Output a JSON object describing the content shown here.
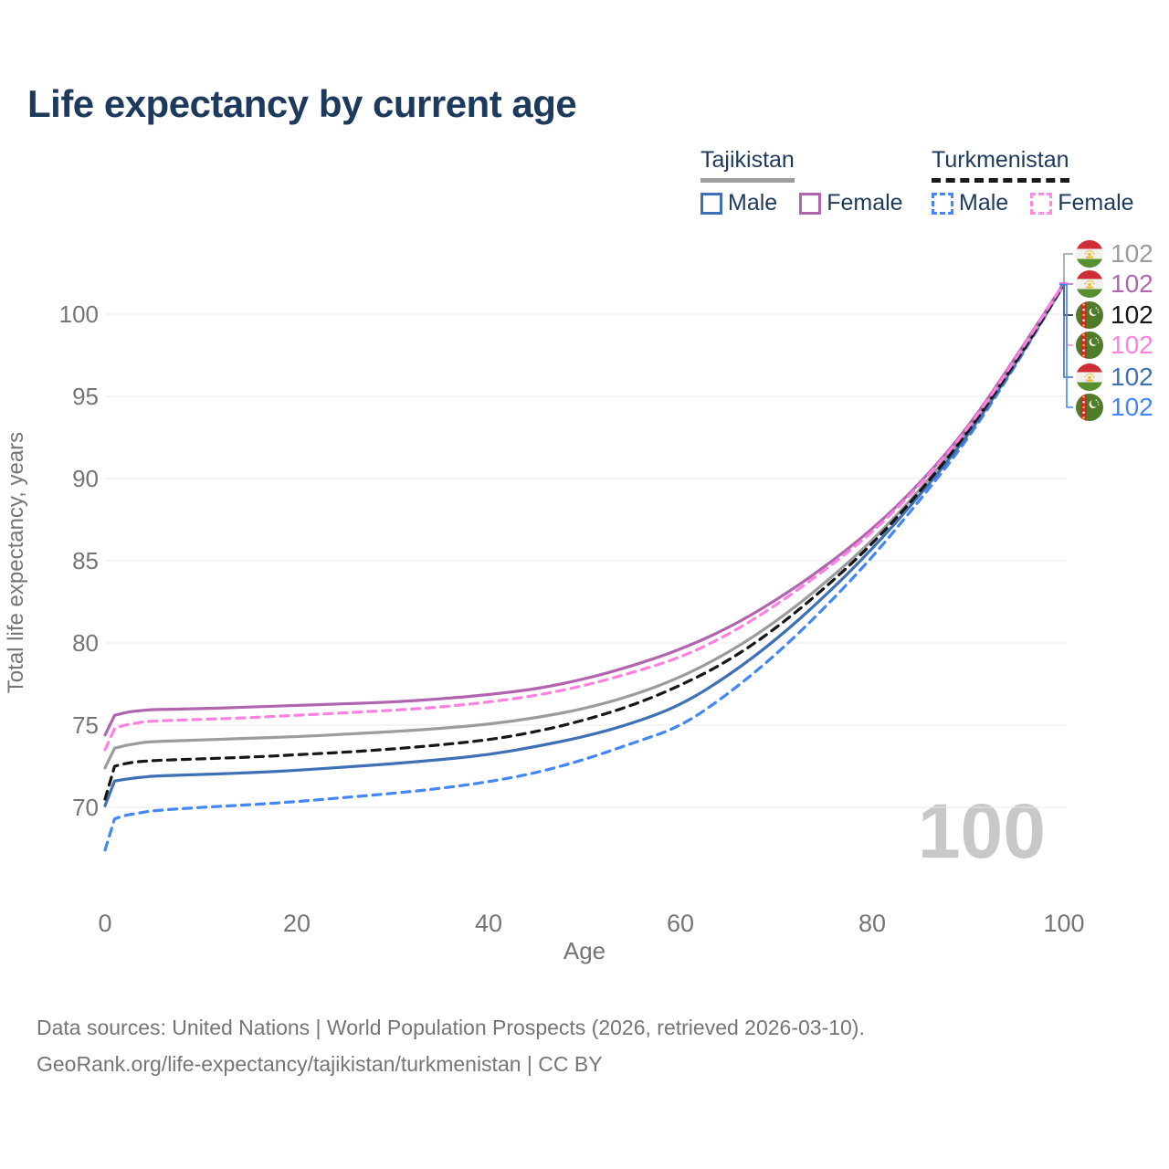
{
  "page": {
    "title": "Life expectancy by current age"
  },
  "legend": {
    "groups": [
      {
        "label": "Tajikistan",
        "underline_color": "#9e9e9e",
        "underline_style": "solid",
        "items": [
          {
            "label": "Male",
            "color": "#3e70b6",
            "style": "solid"
          },
          {
            "label": "Female",
            "color": "#b265af",
            "style": "solid"
          }
        ]
      },
      {
        "label": "Turkmenistan",
        "underline_color": "#1a1a1a",
        "underline_style": "dashed",
        "items": [
          {
            "label": "Male",
            "color": "#4287f5",
            "style": "dashed"
          },
          {
            "label": "Female",
            "color": "#ff8ce4",
            "style": "dashed"
          }
        ]
      }
    ]
  },
  "chart_data": {
    "type": "line",
    "title": "Life expectancy by current age",
    "xlabel": "Age",
    "ylabel": "Total life expectancy, years",
    "xlim": [
      0,
      100
    ],
    "ylim": [
      67,
      102
    ],
    "xticks": [
      0,
      20,
      40,
      60,
      80,
      100
    ],
    "yticks": [
      70,
      75,
      80,
      85,
      90,
      95,
      100
    ],
    "grid": "horizontal-only",
    "grid_color": "#e8e8e8",
    "tick_color": "#757575",
    "age_counter": "100",
    "x": [
      0,
      1,
      2,
      3,
      4,
      5,
      10,
      15,
      20,
      25,
      30,
      35,
      40,
      45,
      50,
      55,
      60,
      65,
      70,
      75,
      80,
      85,
      90,
      95,
      100
    ],
    "series": [
      {
        "name": "Tajikistan",
        "sex": "both",
        "style": "solid",
        "color": "#9c9c9c",
        "flag": "tajikistan",
        "end_label": "102",
        "label_slot": 0,
        "values": [
          72.4,
          73.6,
          73.75,
          73.85,
          73.95,
          74.0,
          74.1,
          74.2,
          74.3,
          74.45,
          74.6,
          74.8,
          75.05,
          75.45,
          76.0,
          76.8,
          77.9,
          79.4,
          81.3,
          83.6,
          86.2,
          89.3,
          92.9,
          97.2,
          101.8
        ]
      },
      {
        "name": "Tajikistan",
        "sex": "female",
        "style": "solid",
        "color": "#b265af",
        "flag": "tajikistan",
        "end_label": "102",
        "label_slot": 1,
        "values": [
          74.4,
          75.6,
          75.75,
          75.85,
          75.9,
          75.95,
          76.0,
          76.1,
          76.2,
          76.3,
          76.4,
          76.6,
          76.85,
          77.2,
          77.8,
          78.6,
          79.6,
          80.9,
          82.6,
          84.6,
          86.9,
          89.7,
          93.1,
          97.4,
          101.9
        ]
      },
      {
        "name": "Turkmenistan",
        "sex": "both",
        "style": "dashed",
        "color": "#161616",
        "flag": "turkmenistan",
        "end_label": "102",
        "label_slot": 2,
        "values": [
          70.5,
          72.5,
          72.65,
          72.75,
          72.8,
          72.85,
          72.95,
          73.05,
          73.2,
          73.35,
          73.55,
          73.8,
          74.1,
          74.6,
          75.3,
          76.2,
          77.4,
          78.9,
          80.9,
          83.3,
          86.0,
          89.2,
          92.8,
          97.1,
          101.8
        ]
      },
      {
        "name": "Turkmenistan",
        "sex": "female",
        "style": "dashed",
        "color": "#ff80e1",
        "flag": "turkmenistan",
        "end_label": "102",
        "label_slot": 3,
        "values": [
          73.5,
          74.8,
          75.0,
          75.1,
          75.2,
          75.25,
          75.35,
          75.45,
          75.6,
          75.75,
          75.9,
          76.1,
          76.4,
          76.8,
          77.4,
          78.2,
          79.1,
          80.5,
          82.3,
          84.4,
          86.7,
          89.6,
          93.0,
          97.3,
          101.9
        ]
      },
      {
        "name": "Tajikistan",
        "sex": "male",
        "style": "solid",
        "color": "#3e70b6",
        "flag": "tajikistan",
        "end_label": "102",
        "label_slot": 4,
        "values": [
          70.1,
          71.6,
          71.7,
          71.78,
          71.84,
          71.9,
          72.0,
          72.1,
          72.25,
          72.45,
          72.65,
          72.9,
          73.2,
          73.7,
          74.3,
          75.1,
          76.2,
          78.0,
          80.2,
          82.8,
          85.7,
          89.0,
          92.6,
          97.0,
          101.8
        ]
      },
      {
        "name": "Turkmenistan",
        "sex": "male",
        "style": "dashed",
        "color": "#4287f5",
        "flag": "turkmenistan",
        "end_label": "102",
        "label_slot": 5,
        "values": [
          67.4,
          69.3,
          69.5,
          69.6,
          69.7,
          69.8,
          70.0,
          70.15,
          70.35,
          70.6,
          70.85,
          71.15,
          71.55,
          72.1,
          72.9,
          73.9,
          74.9,
          76.9,
          79.3,
          82.1,
          85.2,
          88.7,
          92.4,
          96.9,
          101.8
        ]
      }
    ],
    "end_label_slots_y": [
      278,
      311,
      345,
      378,
      413,
      446
    ]
  },
  "footer": {
    "line1": "Data sources: United Nations | World Population Prospects (2026, retrieved 2026-03-10).",
    "line2": "GeoRank.org/life-expectancy/tajikistan/turkmenistan | CC BY"
  }
}
